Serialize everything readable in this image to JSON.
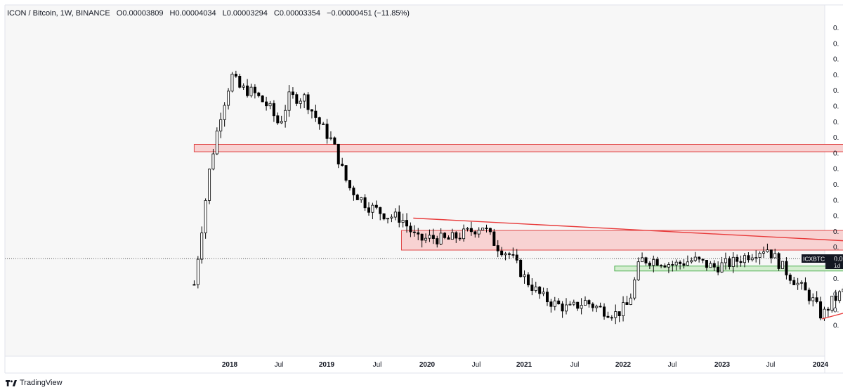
{
  "legend": {
    "symbol": "ICON / Bitcoin, 1W, BINANCE",
    "open": "O0.00003809",
    "high": "H0.00004034",
    "low": "L0.00003294",
    "close": "C0.00003354",
    "change": "−0.00000451 (−11.85%)"
  },
  "price_tag": {
    "symbol": "ICXBTC",
    "value": "0.0",
    "sub": "1d"
  },
  "y_axis_labels": [
    "0.",
    "0.",
    "0.",
    "0.",
    "0.",
    "0.",
    "0.",
    "0.",
    "0.",
    "0.",
    "0.",
    "0.",
    "0.",
    "0.",
    "0.",
    "0.",
    "0.",
    "0.",
    "0.",
    "0."
  ],
  "x_axis_labels": [
    "2018",
    "Jul",
    "2019",
    "Jul",
    "2020",
    "Jul",
    "2021",
    "Jul",
    "2022",
    "Jul",
    "2023",
    "Jul",
    "2024"
  ],
  "brand": "TradingView",
  "colors": {
    "up": "#ffffff",
    "down": "#000000",
    "resistance_zone": "#f8d2d2",
    "resistance_border": "#e04848",
    "support_zone": "#d4edcf",
    "support_border": "#4caf50",
    "trendline": "#e83a3a"
  },
  "chart_data": {
    "type": "candlestick",
    "title": "ICON / Bitcoin, 1W, BINANCE",
    "series": "ICXBTC",
    "x_range": [
      2017.3,
      2024.1
    ],
    "y_range_normalized": [
      0,
      1
    ],
    "path": [
      [
        2017.82,
        0.1
      ],
      [
        2017.9,
        0.58
      ],
      [
        2017.95,
        0.78
      ],
      [
        2018.01,
        0.95
      ],
      [
        2018.05,
        0.9
      ],
      [
        2018.12,
        0.88
      ],
      [
        2018.2,
        0.82
      ],
      [
        2018.25,
        0.75
      ],
      [
        2018.3,
        0.86
      ],
      [
        2018.38,
        0.86
      ],
      [
        2018.45,
        0.76
      ],
      [
        2018.52,
        0.68
      ],
      [
        2018.6,
        0.5
      ],
      [
        2018.7,
        0.42
      ],
      [
        2018.8,
        0.38
      ],
      [
        2018.87,
        0.37
      ],
      [
        2018.95,
        0.28
      ],
      [
        2019.03,
        0.29
      ],
      [
        2019.1,
        0.28
      ],
      [
        2019.2,
        0.31
      ],
      [
        2019.28,
        0.34
      ],
      [
        2019.35,
        0.26
      ],
      [
        2019.42,
        0.22
      ],
      [
        2019.5,
        0.12
      ],
      [
        2019.58,
        0.05
      ],
      [
        2019.65,
        0.02
      ],
      [
        2019.72,
        0.0
      ],
      [
        2019.8,
        0.03
      ],
      [
        2019.88,
        0.0
      ],
      [
        2019.96,
        -0.02
      ],
      [
        2020.02,
        0.02
      ],
      [
        2020.08,
        0.2
      ],
      [
        2020.16,
        0.2
      ],
      [
        2020.25,
        0.18
      ],
      [
        2020.35,
        0.2
      ],
      [
        2020.45,
        0.17
      ],
      [
        2020.55,
        0.19
      ],
      [
        2020.65,
        0.23
      ],
      [
        2020.72,
        0.25
      ],
      [
        2020.8,
        0.17
      ],
      [
        2020.88,
        0.1
      ],
      [
        2020.95,
        0.04
      ],
      [
        2021.0,
        -0.03
      ],
      [
        2021.05,
        0.03
      ],
      [
        2021.12,
        0.08
      ],
      [
        2021.2,
        0.16
      ],
      [
        2021.3,
        0.2
      ],
      [
        2021.4,
        0.25
      ],
      [
        2021.48,
        0.2
      ],
      [
        2021.55,
        0.12
      ],
      [
        2021.63,
        0.08
      ],
      [
        2021.72,
        0.1
      ],
      [
        2021.8,
        0.15
      ],
      [
        2021.86,
        0.25
      ],
      [
        2021.9,
        0.2
      ],
      [
        2021.93,
        0.18
      ]
    ],
    "resistance_zones": [
      {
        "x0": 2017.82,
        "x1": 2022.25,
        "y0": 0.64,
        "y1": 0.67
      },
      {
        "x0": 2018.87,
        "x1": 2022.25,
        "y0": 0.24,
        "y1": 0.32
      }
    ],
    "support_zones": [
      {
        "x0": 2019.95,
        "x1": 2022.25,
        "y0": 0.155,
        "y1": 0.175
      }
    ],
    "trendlines": [
      {
        "x0": 2018.93,
        "y0": 0.37,
        "x1": 2022.25,
        "y1": 0.23
      },
      {
        "x0": 2021.0,
        "y0": -0.04,
        "x1": 2022.25,
        "y1": 0.23
      }
    ]
  }
}
